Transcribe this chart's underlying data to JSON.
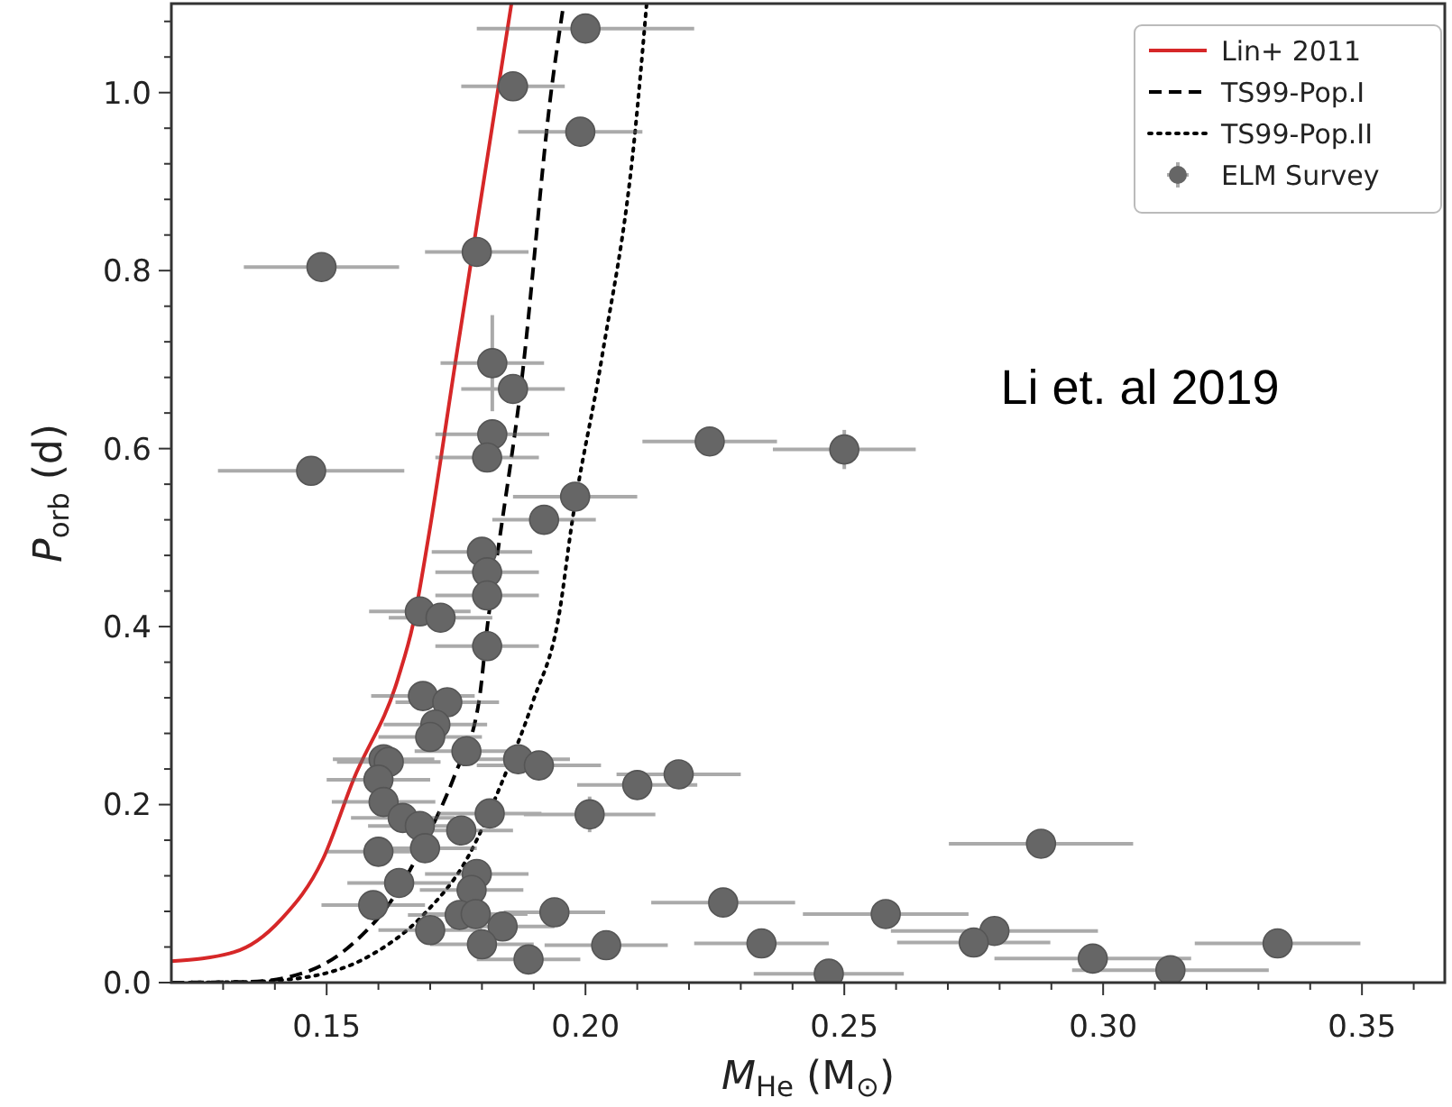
{
  "chart_data": {
    "type": "scatter",
    "xlabel": "M$_{He}$ (M$_{⊙}$)",
    "ylabel": "P$_{orb}$ (d)",
    "annotations": [
      "Li et. al 2019"
    ],
    "xlim": [
      0.12,
      0.366
    ],
    "ylim": [
      0,
      1.1
    ],
    "xticks": [
      {
        "value": 0.13,
        "label": null
      },
      {
        "value": 0.14,
        "label": null
      },
      0.15,
      {
        "value": 0.16,
        "label": null
      },
      {
        "value": 0.17,
        "label": null
      },
      {
        "value": 0.18,
        "label": null
      },
      {
        "value": 0.19,
        "label": null
      },
      {
        "value": 0.2,
        "label": "0.20"
      },
      {
        "value": 0.21,
        "label": null
      },
      {
        "value": 0.22,
        "label": null
      },
      {
        "value": 0.23,
        "label": null
      },
      {
        "value": 0.24,
        "label": null
      },
      0.25,
      {
        "value": 0.26,
        "label": null
      },
      {
        "value": 0.27,
        "label": null
      },
      {
        "value": 0.28,
        "label": null
      },
      {
        "value": 0.29,
        "label": null
      },
      {
        "value": 0.3,
        "label": "0.30"
      },
      {
        "value": 0.31,
        "label": null
      },
      {
        "value": 0.32,
        "label": null
      },
      {
        "value": 0.33,
        "label": null
      },
      {
        "value": 0.34,
        "label": null
      },
      0.35,
      {
        "value": 0.36,
        "label": null
      }
    ],
    "yticks": [
      {
        "value": 0,
        "label": "0.0"
      },
      {
        "value": 0.04,
        "label": null
      },
      {
        "value": 0.08,
        "label": null
      },
      {
        "value": 0.12,
        "label": null
      },
      {
        "value": 0.16,
        "label": null
      },
      0.2,
      {
        "value": 0.24,
        "label": null
      },
      {
        "value": 0.28,
        "label": null
      },
      {
        "value": 0.32,
        "label": null
      },
      {
        "value": 0.36,
        "label": null
      },
      0.4,
      {
        "value": 0.44,
        "label": null
      },
      {
        "value": 0.48,
        "label": null
      },
      {
        "value": 0.52,
        "label": null
      },
      {
        "value": 0.56,
        "label": null
      },
      0.6,
      {
        "value": 0.64,
        "label": null
      },
      {
        "value": 0.68,
        "label": null
      },
      {
        "value": 0.72,
        "label": null
      },
      {
        "value": 0.76,
        "label": null
      },
      0.8,
      {
        "value": 0.84,
        "label": null
      },
      {
        "value": 0.88,
        "label": null
      },
      {
        "value": 0.92,
        "label": null
      },
      {
        "value": 0.96,
        "label": null
      },
      {
        "value": 1,
        "label": "1.0"
      },
      {
        "value": 1.04,
        "label": null
      },
      {
        "value": 1.08,
        "label": null
      }
    ],
    "grid": false,
    "legend": "top right",
    "series": [
      {
        "name": "Lin+ 2011",
        "type": "line",
        "color": "#d62728",
        "line_style": "solid",
        "x": [
          0.12,
          0.132,
          0.1412,
          0.1493,
          0.1551,
          0.1638,
          0.1667,
          0.1696,
          0.175,
          0.1857
        ],
        "values": [
          0.024,
          0.034,
          0.071,
          0.139,
          0.227,
          0.342,
          0.403,
          0.498,
          0.702,
          1.1
        ]
      },
      {
        "name": "TS99-Pop.I",
        "type": "line",
        "color": "#000000",
        "line_style": "dashed",
        "x": [
          0.12,
          0.1354,
          0.147,
          0.1551,
          0.1632,
          0.169,
          0.1748,
          0.1794,
          0.1811,
          0.1834,
          0.1875,
          0.1935,
          0.1958
        ],
        "values": [
          0,
          0.001,
          0.014,
          0.044,
          0.098,
          0.159,
          0.234,
          0.315,
          0.403,
          0.498,
          0.668,
          1.007,
          1.1
        ]
      },
      {
        "name": "TS99-Pop.II",
        "type": "line",
        "color": "#000000",
        "line_style": "dotted",
        "x": [
          0.12,
          0.1354,
          0.147,
          0.1586,
          0.169,
          0.1771,
          0.184,
          0.1898,
          0.195,
          0.1973,
          0.2031,
          0.2095,
          0.2118
        ],
        "values": [
          0,
          0.001,
          0.007,
          0.031,
          0.078,
          0.139,
          0.227,
          0.315,
          0.417,
          0.513,
          0.7,
          0.951,
          1.099
        ]
      },
      {
        "name": "ELM Survey",
        "color": "#666666",
        "marker": "circle",
        "x": [
          0.2,
          0.186,
          0.199,
          0.149,
          0.179,
          0.182,
          0.186,
          0.182,
          0.181,
          0.147,
          0.224,
          0.25,
          0.198,
          0.192,
          0.18,
          0.181,
          0.181,
          0.168,
          0.172,
          0.181,
          0.1686,
          0.1733,
          0.171,
          0.17,
          0.177,
          0.161,
          0.162,
          0.187,
          0.191,
          0.16,
          0.218,
          0.21,
          0.161,
          0.1647,
          0.168,
          0.1815,
          0.2008,
          0.176,
          0.169,
          0.16,
          0.179,
          0.164,
          0.178,
          0.159,
          0.2266,
          0.194,
          0.1757,
          0.1788,
          0.184,
          0.17,
          0.18,
          0.204,
          0.234,
          0.189,
          0.288,
          0.258,
          0.279,
          0.275,
          0.3337,
          0.298,
          0.313,
          0.247
        ],
        "values": [
          1.072,
          1.007,
          0.956,
          0.804,
          0.821,
          0.696,
          0.667,
          0.616,
          0.59,
          0.575,
          0.608,
          0.599,
          0.546,
          0.52,
          0.484,
          0.461,
          0.435,
          0.417,
          0.41,
          0.378,
          0.322,
          0.315,
          0.29,
          0.276,
          0.26,
          0.251,
          0.248,
          0.251,
          0.244,
          0.228,
          0.234,
          0.222,
          0.203,
          0.185,
          0.176,
          0.19,
          0.189,
          0.171,
          0.151,
          0.147,
          0.122,
          0.112,
          0.104,
          0.087,
          0.09,
          0.079,
          0.076,
          0.077,
          0.063,
          0.059,
          0.043,
          0.042,
          0.044,
          0.026,
          0.156,
          0.077,
          0.058,
          0.045,
          0.044,
          0.027,
          0.014,
          0.01
        ],
        "xerrors": [
          0.021,
          0.01,
          0.012,
          0.015,
          0.01,
          0.01,
          0.01,
          0.011,
          0.01,
          0.018,
          0.013,
          0.0138,
          0.012,
          0.01,
          0.0097,
          0.01,
          0.01,
          0.0098,
          0.01,
          0.01,
          0.01,
          0.01,
          0.01,
          0.01,
          0.01,
          0.0098,
          0.01,
          0.01,
          0.012,
          0.01,
          0.012,
          0.0116,
          0.01,
          0.01,
          0.01,
          0.01,
          0.0127,
          0.01,
          0.01,
          0.01,
          0.01,
          0.01,
          0.01,
          0.01,
          0.0139,
          0.0098,
          0.01,
          0.01,
          0.01,
          0.01,
          0.01,
          0.0119,
          0.013,
          0.01,
          0.0178,
          0.016,
          0.02,
          0.0148,
          0.016,
          0.019,
          0.019,
          0.0145
        ],
        "errors": [
          null,
          null,
          null,
          null,
          null,
          0.054,
          null,
          null,
          null,
          null,
          null,
          0.022,
          null,
          null,
          null,
          null,
          null,
          null,
          null,
          null,
          null,
          null,
          null,
          null,
          null,
          null,
          null,
          null,
          null,
          null,
          null,
          null,
          null,
          null,
          null,
          null,
          0.02,
          null,
          null,
          null,
          null,
          null,
          null,
          null,
          null,
          null,
          null,
          null,
          null,
          null,
          null,
          null,
          null,
          null,
          null,
          null,
          null,
          null,
          null,
          null,
          null,
          null
        ]
      }
    ]
  }
}
